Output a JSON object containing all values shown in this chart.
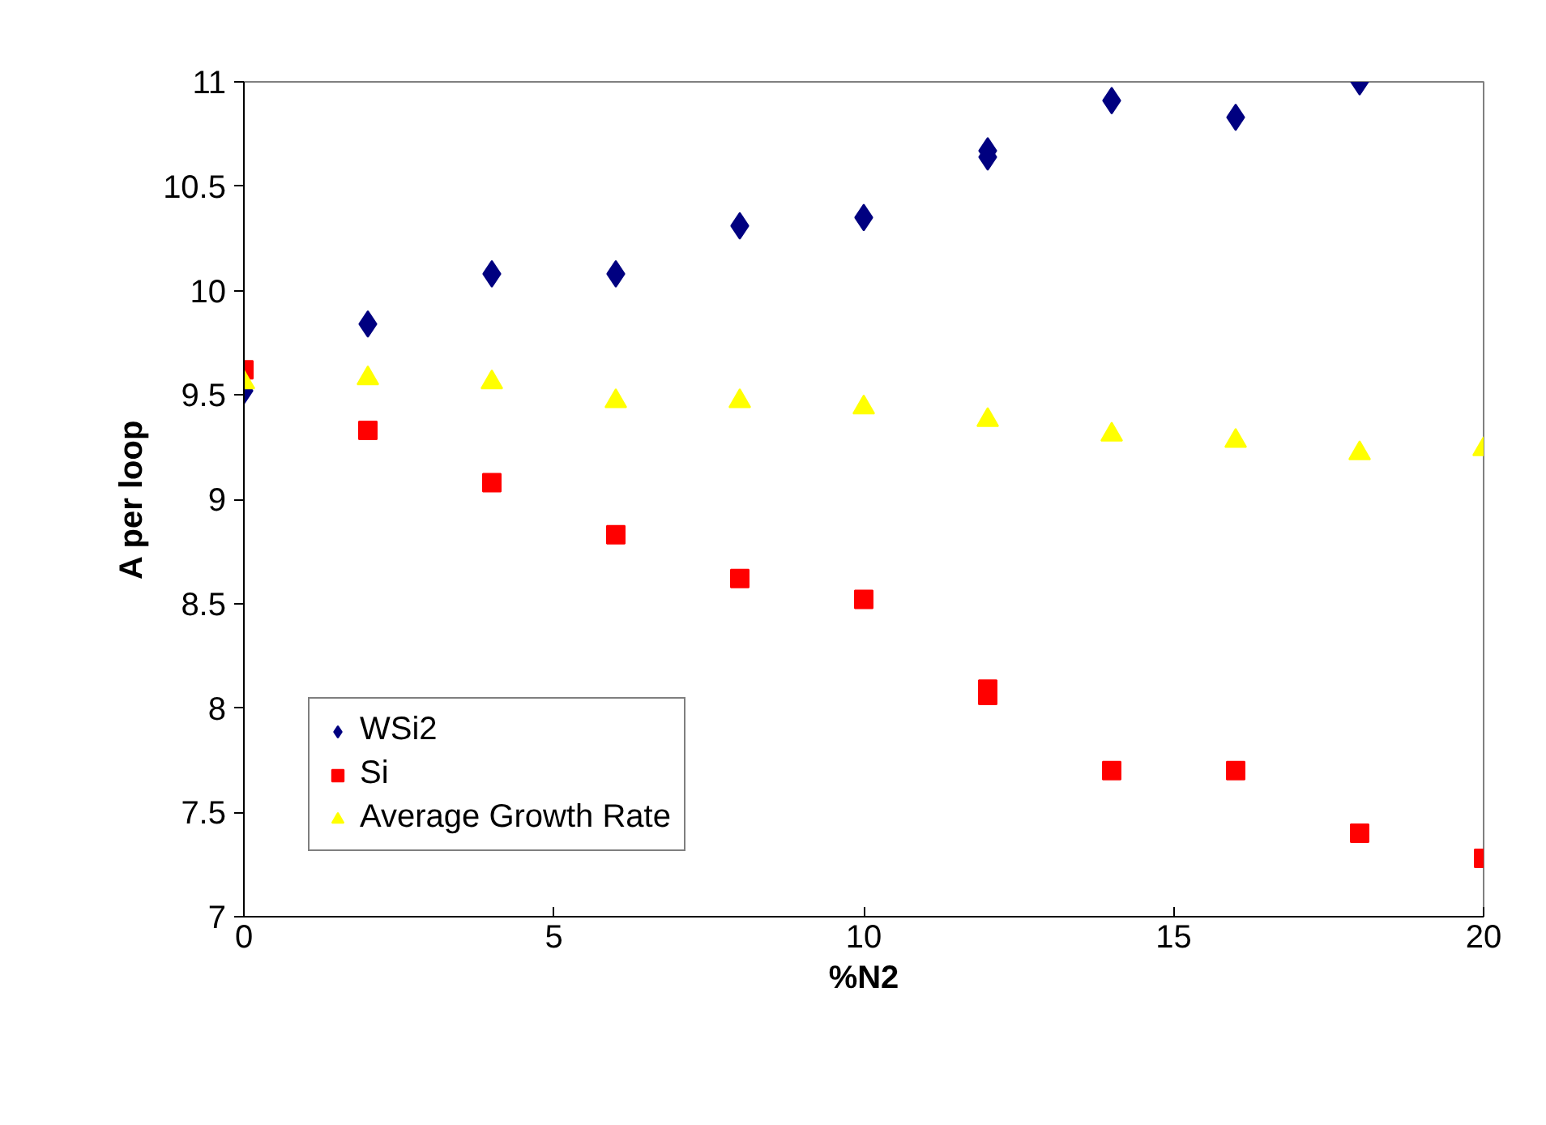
{
  "chart_data": {
    "type": "scatter",
    "xlabel": "%N2",
    "ylabel": "A per loop",
    "xlim": [
      0,
      20
    ],
    "xticks": [
      0,
      5,
      10,
      15,
      20
    ],
    "ylim": [
      7,
      11
    ],
    "yticks": [
      7,
      7.5,
      8,
      8.5,
      9,
      9.5,
      10,
      10.5,
      11
    ],
    "grid": false,
    "legend": "bottom left",
    "series": [
      {
        "name": "WSi2",
        "color": "#000080",
        "marker": "diamond",
        "x": [
          0,
          2,
          4,
          6,
          8,
          10,
          12,
          12,
          14,
          16,
          18
        ],
        "values": [
          9.52,
          9.84,
          10.08,
          10.08,
          10.31,
          10.35,
          10.67,
          10.64,
          10.91,
          10.83,
          11.0
        ]
      },
      {
        "name": "Si",
        "color": "#ff0000",
        "marker": "square",
        "x": [
          0,
          2,
          4,
          6,
          8,
          10,
          12,
          12,
          14,
          16,
          18,
          20
        ],
        "values": [
          9.62,
          9.33,
          9.08,
          8.83,
          8.62,
          8.52,
          8.09,
          8.06,
          7.7,
          7.7,
          7.4,
          7.28
        ]
      },
      {
        "name": "Average Growth Rate",
        "color": "#ffff00",
        "marker": "triangle",
        "x": [
          0,
          2,
          4,
          6,
          8,
          10,
          12,
          14,
          16,
          18,
          20
        ],
        "values": [
          9.56,
          9.58,
          9.56,
          9.47,
          9.47,
          9.44,
          9.38,
          9.31,
          9.28,
          9.22,
          9.24
        ]
      }
    ]
  }
}
